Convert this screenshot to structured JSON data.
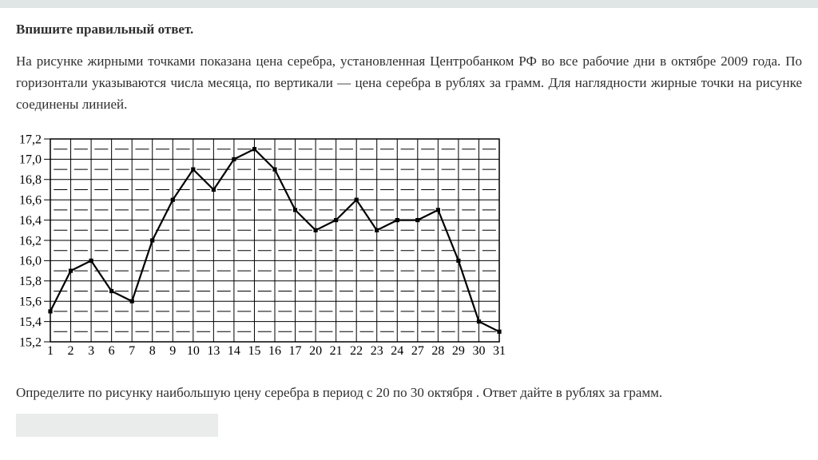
{
  "page": {
    "title": "Впишите правильный ответ.",
    "problem_text": "На рисунке жирными точками показана цена серебра, установленная Центробанком РФ во все рабочие дни в октябре 2009 года. По горизонтали указываются числа месяца, по вертикали —  цена серебра в рублях за грамм. Для наглядности жирные точки на рисунке соединены линией.",
    "question_text": "Определите по рисунку наибольшую цену серебра в период с 20 по 30 октября . Ответ дайте в рублях за грамм.",
    "answer_input": {
      "value": "",
      "placeholder": ""
    }
  },
  "colors": {
    "top_bar": "#e0e5e6",
    "answer_box": "#e9eceb",
    "text": "#2f2f2f",
    "chart_ink": "#000000",
    "background": "#ffffff"
  },
  "chart_data": {
    "type": "line",
    "title": "",
    "xlabel": "",
    "ylabel": "",
    "categories": [
      "1",
      "2",
      "3",
      "6",
      "7",
      "8",
      "9",
      "10",
      "13",
      "14",
      "15",
      "16",
      "17",
      "20",
      "21",
      "22",
      "23",
      "24",
      "27",
      "28",
      "29",
      "30",
      "31"
    ],
    "values": [
      15.5,
      15.9,
      16.0,
      15.7,
      15.6,
      16.2,
      16.6,
      16.9,
      16.7,
      17.0,
      17.1,
      16.9,
      16.5,
      16.3,
      16.4,
      16.6,
      16.3,
      16.4,
      16.4,
      16.5,
      16.0,
      15.4,
      15.3
    ],
    "ylim": [
      15.2,
      17.2
    ],
    "y_major_step": 0.2,
    "y_minor_step": 0.1,
    "y_tick_labels": [
      "15,2",
      "15,4",
      "15,6",
      "15,8",
      "16,0",
      "16,2",
      "16,4",
      "16,6",
      "16,8",
      "17,0",
      "17,2"
    ],
    "grid": true,
    "minor_grid_style": "dashed",
    "marker": "square",
    "line_color": "#000000",
    "legend": null
  }
}
